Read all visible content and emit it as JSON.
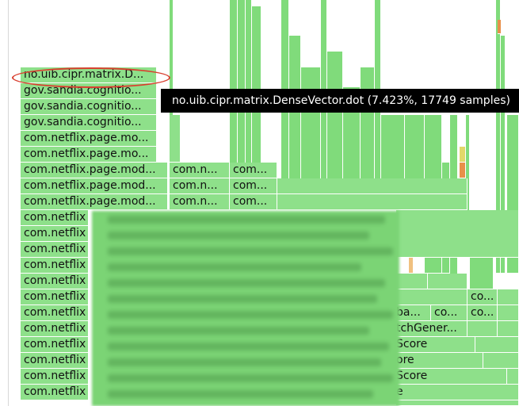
{
  "tooltip": "no.uib.cipr.matrix.DenseVector.dot (7.423%, 17749 samples)",
  "left_column": [
    "no.uib.cipr.matrix.D...",
    "gov.sandia.cognitio...",
    "gov.sandia.cognitio...",
    "gov.sandia.cognitio...",
    "com.netflix.page.mo...",
    "com.netflix.page.mo...",
    "com.netflix.page.mod...",
    "com.netflix.page.mod...",
    "com.netflix.page.mod...",
    "com.netflix",
    "com.netflix",
    "com.netflix",
    "com.netflix",
    "com.netflix",
    "com.netflix",
    "com.netflix",
    "com.netflix",
    "com.netflix",
    "com.netflix",
    "com.netflix",
    "com.netflix"
  ],
  "col2": [
    "com.n...",
    "com.n...",
    "com.n..."
  ],
  "col3": [
    "com...",
    "com...",
    "com..."
  ],
  "right_fragments": {
    "ba": "ba...",
    "co1": "co...",
    "co2": "co...",
    "co3": "co...",
    "tchgener": "tchGener...",
    "score1": "Score",
    "ore": "ore",
    "score2": "Score",
    "e": "e"
  },
  "colors": {
    "frame_green": "#8ee08a",
    "tooltip_bg": "#000000",
    "highlight_circle": "#d94030",
    "hot_orange": "#e8904a",
    "warm_yellow": "#e2d86a"
  }
}
